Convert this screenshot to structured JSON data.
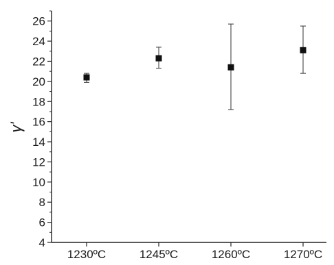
{
  "chart_data": {
    "type": "scatter",
    "title": "",
    "xlabel": "",
    "ylabel": "γ'",
    "categories": [
      "1230ºC",
      "1245ºC",
      "1260ºC",
      "1270ºC"
    ],
    "series": [
      {
        "values": [
          20.4,
          22.3,
          21.4,
          23.1
        ],
        "error_low": [
          19.9,
          21.3,
          17.2,
          20.8
        ],
        "error_high": [
          20.8,
          23.4,
          25.7,
          25.5
        ]
      }
    ],
    "ylim": [
      4,
      27
    ],
    "yticks": [
      4,
      6,
      8,
      10,
      12,
      14,
      16,
      18,
      20,
      22,
      24,
      26
    ],
    "grid": false,
    "legend": "none",
    "colors": {
      "marker": "#111111",
      "axis": "#222222",
      "error_bar": "#444444"
    }
  }
}
